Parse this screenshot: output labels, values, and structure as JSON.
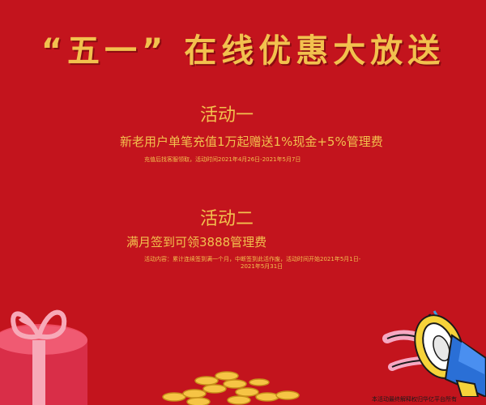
{
  "headline": "“五一” 在线优惠大放送",
  "activities": [
    {
      "title": "活动一",
      "main": "新老用户单笔充值1万起赠送1%现金+5%管理费",
      "note": "充值后找客服领取，活动时间2021年4月26日-2021年5月7日"
    },
    {
      "title": "活动二",
      "main": "满月签到可领3888管理费",
      "note_line1": "活动内容：累计连续签到满一个月，中断签到此活作废，活动时间开始2021年5月1日-",
      "note_line2": "2021年5月31日"
    }
  ],
  "footer": "本活动最终解释权归华亿平台所有",
  "colors": {
    "background": "#c3141d",
    "gold_text": "#f2c14e"
  },
  "decorations": [
    "gift-box-icon",
    "gold-coins-icon",
    "loudspeaker-icon"
  ]
}
